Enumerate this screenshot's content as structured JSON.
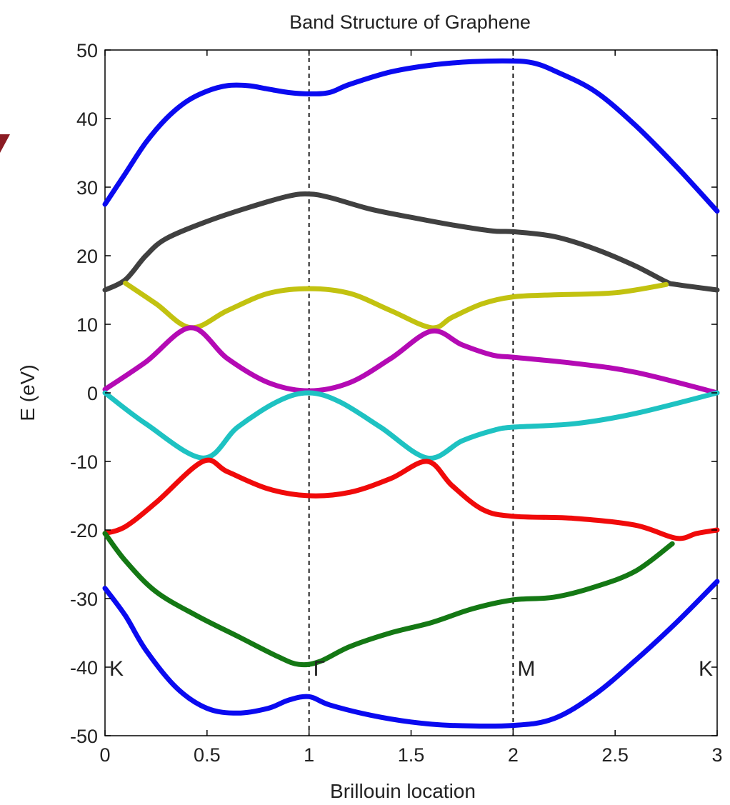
{
  "chart_data": {
    "type": "line",
    "title": "Band Structure of Graphene",
    "xlabel": "Brillouin location",
    "ylabel": "E (eV)",
    "xlim": [
      0,
      3
    ],
    "ylim": [
      -50,
      50
    ],
    "xticks": [
      0,
      0.5,
      1,
      1.5,
      2,
      2.5,
      3
    ],
    "yticks": [
      50,
      40,
      30,
      20,
      10,
      0,
      -10,
      -20,
      -30,
      -40,
      -50
    ],
    "xtick_labels": [
      "0",
      "0.5",
      "1",
      "1.5",
      "2",
      "2.5",
      "3"
    ],
    "ytick_labels": [
      "50",
      "40",
      "30",
      "20",
      "10",
      "0",
      "-10",
      "-20",
      "-30",
      "-40",
      "-50"
    ],
    "grid": false,
    "legend": "none",
    "vlines": [
      1,
      2
    ],
    "point_labels": [
      {
        "text": "K",
        "x": 0,
        "y": -40
      },
      {
        "text": "Γ",
        "x": 1,
        "y": -40
      },
      {
        "text": "M",
        "x": 2,
        "y": -40
      },
      {
        "text": "K",
        "x": 3,
        "y": -40
      }
    ],
    "series": [
      {
        "color": "#0a0af0",
        "x": [
          0,
          0.1,
          0.2,
          0.3,
          0.4,
          0.5,
          0.6,
          0.7,
          0.8,
          0.9,
          1.0,
          1.1,
          1.2,
          1.4,
          1.6,
          1.8,
          2.0,
          2.1,
          2.2,
          2.4,
          2.6,
          2.8,
          3.0
        ],
        "y": [
          27.5,
          32,
          36.5,
          40,
          42.5,
          44,
          44.8,
          44.8,
          44.3,
          43.8,
          43.6,
          43.8,
          45,
          46.8,
          47.8,
          48.3,
          48.4,
          48.1,
          47,
          44,
          39,
          33,
          26.5
        ]
      },
      {
        "color": "#404040",
        "x": [
          0,
          0.1,
          0.2,
          0.3,
          0.5,
          0.7,
          0.9,
          1.0,
          1.1,
          1.3,
          1.5,
          1.7,
          1.9,
          2.0,
          2.2,
          2.4,
          2.6,
          2.75,
          2.8,
          3.0
        ],
        "y": [
          15,
          16.5,
          20,
          22.5,
          25,
          27,
          28.7,
          29,
          28.5,
          26.8,
          25.6,
          24.5,
          23.6,
          23.5,
          22.8,
          21,
          18.5,
          16.2,
          15.8,
          15
        ]
      },
      {
        "color": "#c2c210",
        "x": [
          0.1,
          0.25,
          0.42,
          0.6,
          0.8,
          1.0,
          1.2,
          1.4,
          1.6,
          1.7,
          1.85,
          2.0,
          2.2,
          2.5,
          2.75
        ],
        "y": [
          16,
          13,
          9.5,
          12,
          14.5,
          15.2,
          14.5,
          12,
          9.5,
          11,
          13,
          14,
          14.3,
          14.6,
          15.8
        ]
      },
      {
        "color": "#b40ab4",
        "x": [
          0,
          0.2,
          0.42,
          0.6,
          0.8,
          1.0,
          1.2,
          1.4,
          1.6,
          1.75,
          1.9,
          2.0,
          2.3,
          2.6,
          3.0
        ],
        "y": [
          0.5,
          4.5,
          9.5,
          5,
          1.5,
          0.3,
          1.5,
          5,
          9,
          7,
          5.5,
          5.2,
          4.3,
          3,
          0
        ]
      },
      {
        "color": "#1ec2c2",
        "x": [
          0,
          0.2,
          0.48,
          0.65,
          0.85,
          1.0,
          1.15,
          1.35,
          1.58,
          1.75,
          1.9,
          2.0,
          2.3,
          2.6,
          3.0
        ],
        "y": [
          0,
          -4.5,
          -9.5,
          -5,
          -1.2,
          0,
          -1.3,
          -5,
          -9.5,
          -7,
          -5.5,
          -5,
          -4.5,
          -3,
          0
        ]
      },
      {
        "color": "#f00a0a",
        "x": [
          0,
          0.1,
          0.25,
          0.48,
          0.6,
          0.8,
          1.0,
          1.2,
          1.4,
          1.58,
          1.7,
          1.85,
          2.0,
          2.3,
          2.6,
          2.8,
          2.9,
          3.0
        ],
        "y": [
          -20.5,
          -19.5,
          -16,
          -10,
          -11.5,
          -14,
          -15,
          -14.5,
          -12.5,
          -10,
          -13.5,
          -17,
          -18,
          -18.3,
          -19.3,
          -21.2,
          -20.5,
          -20
        ]
      },
      {
        "color": "#147814",
        "x": [
          0,
          0.1,
          0.25,
          0.45,
          0.65,
          0.85,
          0.95,
          1.05,
          1.2,
          1.4,
          1.6,
          1.8,
          2.0,
          2.2,
          2.4,
          2.6,
          2.78
        ],
        "y": [
          -20.5,
          -24.5,
          -29,
          -32.5,
          -35.5,
          -38.5,
          -39.6,
          -39.2,
          -37,
          -35,
          -33.5,
          -31.5,
          -30.2,
          -29.8,
          -28.3,
          -26,
          -22
        ]
      },
      {
        "color": "#0a0af0",
        "x": [
          0,
          0.1,
          0.2,
          0.35,
          0.5,
          0.65,
          0.8,
          0.9,
          1.0,
          1.1,
          1.3,
          1.5,
          1.7,
          2.0,
          2.2,
          2.4,
          2.6,
          2.8,
          3.0
        ],
        "y": [
          -28.5,
          -32.5,
          -37.5,
          -43,
          -46,
          -46.7,
          -46,
          -44.8,
          -44.3,
          -45.5,
          -47,
          -48,
          -48.5,
          -48.5,
          -47.5,
          -44,
          -39,
          -33.5,
          -27.5
        ]
      }
    ]
  }
}
